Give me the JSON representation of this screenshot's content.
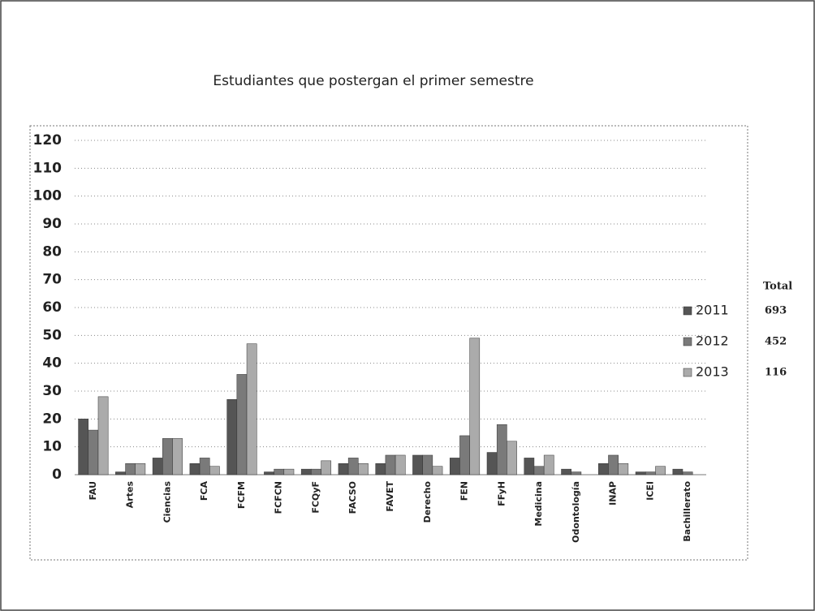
{
  "chart_data": {
    "type": "bar",
    "title": "Estudiantes que postergan el primer semestre",
    "categories": [
      "FAU",
      "Artes",
      "Ciencias",
      "FCA",
      "FCFM",
      "FCFCN",
      "FCQyF",
      "FACSO",
      "FAVET",
      "Derecho",
      "FEN",
      "FFyH",
      "Medicina",
      "Odontología",
      "INAP",
      "ICEI",
      "Bachillerato"
    ],
    "series": [
      {
        "name": "2011",
        "color": "#555555",
        "total": "693",
        "values": [
          20,
          1,
          6,
          4,
          27,
          1,
          2,
          4,
          4,
          7,
          6,
          8,
          6,
          2,
          4,
          1,
          2
        ]
      },
      {
        "name": "2012",
        "color": "#7a7a7a",
        "total": "452",
        "values": [
          16,
          4,
          13,
          6,
          36,
          2,
          2,
          6,
          7,
          7,
          14,
          18,
          3,
          1,
          7,
          1,
          1
        ]
      },
      {
        "name": "2013",
        "color": "#ababab",
        "total": "116",
        "values": [
          28,
          4,
          13,
          3,
          47,
          2,
          5,
          4,
          7,
          3,
          49,
          12,
          7,
          0,
          4,
          3,
          0
        ]
      }
    ],
    "legend_total_label": "Total",
    "ylim": [
      0,
      120
    ],
    "yticks": [
      0,
      10,
      20,
      30,
      40,
      50,
      60,
      70,
      80,
      90,
      100,
      110,
      120
    ],
    "grid": true,
    "legend": "right"
  }
}
